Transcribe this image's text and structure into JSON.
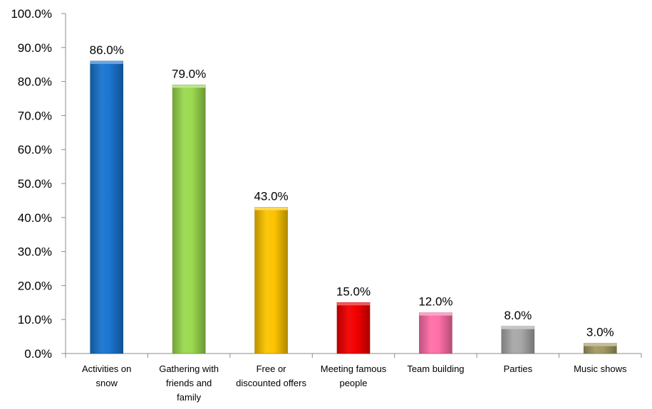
{
  "chart_data": {
    "type": "bar",
    "title": "",
    "xlabel": "",
    "ylabel": "",
    "ylim": [
      0,
      100
    ],
    "ytick_step": 10,
    "ytick_format": "percent_1dp",
    "grid": false,
    "legend": "none",
    "categories": [
      [
        "Activities on",
        "snow"
      ],
      [
        "Gathering with",
        "friends and",
        "family"
      ],
      [
        "Free or",
        "discounted offers"
      ],
      [
        "Meeting famous",
        "people"
      ],
      [
        "Team building"
      ],
      [
        "Parties"
      ],
      [
        "Music shows"
      ]
    ],
    "values": [
      86.0,
      79.0,
      43.0,
      15.0,
      12.0,
      8.0,
      3.0
    ],
    "value_labels": [
      "86.0%",
      "79.0%",
      "43.0%",
      "15.0%",
      "12.0%",
      "8.0%",
      "3.0%"
    ],
    "ytick_labels": [
      "0.0%",
      "10.0%",
      "20.0%",
      "30.0%",
      "40.0%",
      "50.0%",
      "60.0%",
      "70.0%",
      "80.0%",
      "90.0%",
      "100.0%"
    ],
    "colors": [
      "#1a75cf",
      "#9bd94f",
      "#fcc400",
      "#f20000",
      "#ff6fa8",
      "#a8a8a8",
      "#a29a63"
    ]
  }
}
